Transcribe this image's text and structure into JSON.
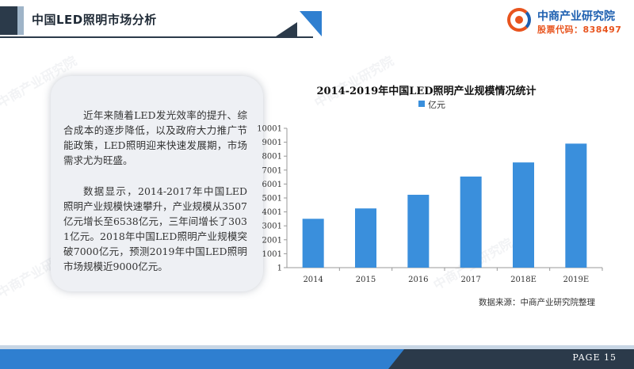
{
  "header": {
    "title": "中国LED照明市场分析"
  },
  "logo": {
    "name": "中商产业研究院",
    "code": "股票代码：838497"
  },
  "watermark": "中商产业研究院",
  "card": {
    "paragraphs": [
      "近年来随着LED发光效率的提升、综合成本的逐步降低，以及政府大力推广节能政策，LED照明迎来快速发展期，市场需求尤为旺盛。",
      "数据显示，2014-2017年中国LED照明产业规模快速攀升，产业规模从3507亿元增长至6538亿元，三年间增长了3031亿元。2018年中国LED照明产业规模突破7000亿元，预测2019年中国LED照明市场规模近9000亿元。"
    ]
  },
  "chart_data": {
    "type": "bar",
    "title": "2014-2019年中国LED照明产业规模情况统计",
    "categories": [
      "2014",
      "2015",
      "2016",
      "2017",
      "2018E",
      "2019E"
    ],
    "series": [
      {
        "name": "亿元",
        "values": [
          3507,
          4250,
          5230,
          6538,
          7550,
          8900
        ],
        "color": "#3a8fdc"
      }
    ],
    "yticks": [
      1,
      1001,
      2001,
      3001,
      4001,
      5001,
      6001,
      7001,
      8001,
      9001,
      10001
    ],
    "ylim": [
      1,
      10001
    ],
    "grid": false,
    "legend": "top-center",
    "xlabel": "",
    "ylabel": ""
  },
  "source": "数据来源：中商产业研究院整理",
  "footer": {
    "page": "PAGE 15"
  }
}
